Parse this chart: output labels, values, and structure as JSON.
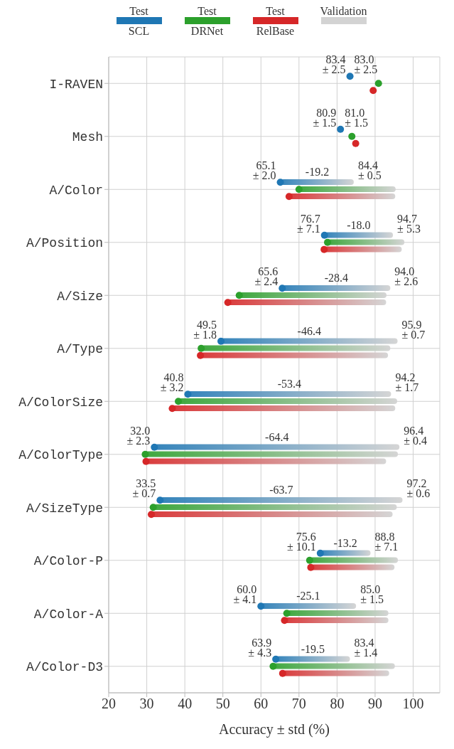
{
  "chart_data": {
    "type": "bar",
    "orientation": "horizontal",
    "xlabel": "Accuracy ± std (%)",
    "categories": [
      "I-RAVEN",
      "Mesh",
      "A/Color",
      "A/Position",
      "A/Size",
      "A/Type",
      "A/ColorSize",
      "A/ColorType",
      "A/SizeType",
      "A/Color-P",
      "A/Color-A",
      "A/Color-D3"
    ],
    "series": [
      {
        "name": "SCL",
        "color": "#1f77b4",
        "base": [
          null,
          null,
          84.4,
          94.7,
          94.0,
          95.9,
          94.2,
          96.4,
          97.2,
          88.8,
          85.0,
          83.4
        ],
        "values": [
          null,
          null,
          -19.2,
          -18.0,
          -28.4,
          -46.4,
          -53.4,
          -64.4,
          -63.7,
          -13.2,
          -25.1,
          -19.5
        ],
        "value_labels": [
          null,
          null,
          "-19.2",
          "-18.0",
          "-28.4",
          "-46.4",
          "-53.4",
          "-64.4",
          "-63.7",
          "-13.2",
          "-25.1",
          "-19.5"
        ]
      },
      {
        "name": "DRNet",
        "color": "#2ca02c",
        "base": [
          null,
          null,
          95.4,
          97.7,
          93.0,
          94.0,
          95.8,
          96.0,
          95.7,
          96.0,
          93.5,
          95.2
        ],
        "values": [
          null,
          null,
          -25.4,
          -20.2,
          -38.7,
          -49.7,
          -57.5,
          -66.4,
          -64.0,
          -23.2,
          -26.7,
          -32.0
        ]
      },
      {
        "name": "RelBase",
        "color": "#d62728",
        "base": [
          null,
          null,
          95.3,
          97.0,
          92.9,
          93.4,
          95.3,
          92.9,
          94.6,
          95.1,
          93.5,
          93.7
        ],
        "values": [
          null,
          null,
          -27.9,
          -20.4,
          -41.6,
          -49.3,
          -58.6,
          -63.1,
          -63.4,
          -22.0,
          -27.3,
          -28.0
        ]
      },
      {
        "type": "scatter",
        "color": "#1f77b4",
        "values": [
          83.4,
          80.9,
          65.1,
          76.7,
          65.6,
          49.5,
          40.8,
          32.0,
          33.5,
          75.6,
          60.0,
          63.9
        ]
      },
      {
        "type": "scatter",
        "color": "#2ca02c",
        "values": [
          90.9,
          83.9,
          70.0,
          77.5,
          54.3,
          44.3,
          38.3,
          29.6,
          31.7,
          72.8,
          66.8,
          63.2
        ]
      },
      {
        "type": "scatter",
        "color": "#d62728",
        "values": [
          89.5,
          84.9,
          67.4,
          76.6,
          51.3,
          44.1,
          36.7,
          29.8,
          31.2,
          73.1,
          66.2,
          65.7
        ]
      }
    ],
    "color": "#d3d3d3",
    "xlim": [
      20,
      107
    ],
    "xticks": [
      20,
      30,
      40,
      50,
      60,
      70,
      80,
      90,
      100
    ],
    "grid": true,
    "legend": "top",
    "marker": "circle",
    "annotations": [
      "Test",
      "Test",
      "Test",
      "Validation",
      "83.4\n± 2.5",
      "83.0\n± 2.5",
      "80.9\n± 1.5",
      "81.0\n± 1.5",
      "65.1\n± 2.0",
      "84.4\n± 0.5",
      "76.7\n± 7.1",
      "94.7\n± 5.3",
      "65.6\n± 2.4",
      "94.0\n± 2.6",
      "49.5\n± 1.8",
      "95.9\n± 0.7",
      "40.8\n± 3.2",
      "94.2\n± 1.7",
      "32.0\n± 2.3",
      "96.4\n± 0.4",
      "33.5\n± 0.7",
      "97.2\n± 0.6",
      "75.6\n± 10.1",
      "88.8\n± 7.1",
      "60.0\n± 4.1",
      "85.0\n± 1.5",
      "63.9\n± 4.3",
      "83.4\n± 1.4"
    ]
  }
}
